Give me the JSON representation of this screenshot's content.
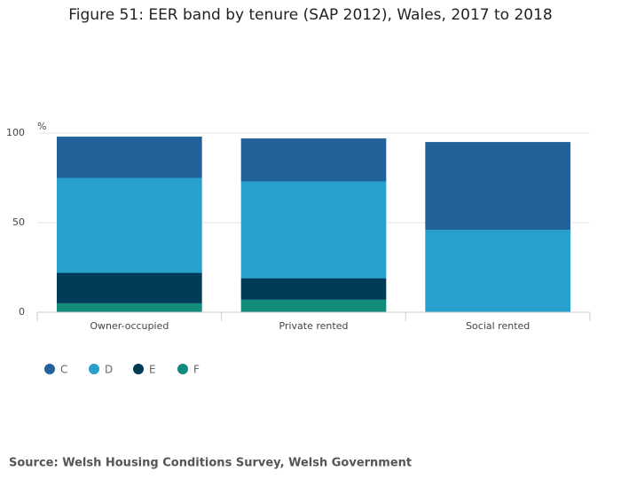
{
  "chart_data": {
    "type": "stacked-bar",
    "title": "Figure 51: EER band by tenure (SAP 2012), Wales, 2017 to 2018",
    "y_label": "%",
    "categories": [
      "Owner-occupied",
      "Private rented",
      "Social rented"
    ],
    "series": [
      {
        "name": "C",
        "color": "#22619a",
        "values": [
          23,
          24,
          49
        ]
      },
      {
        "name": "D",
        "color": "#27a0cc",
        "values": [
          53,
          54,
          46
        ]
      },
      {
        "name": "E",
        "color": "#003c57",
        "values": [
          17,
          12,
          0
        ]
      },
      {
        "name": "F",
        "color": "#118c7b",
        "values": [
          5,
          7,
          0
        ]
      }
    ],
    "ylim": [
      0,
      100
    ],
    "yticks": [
      0,
      50,
      100
    ],
    "grid": true,
    "source": "Source: Welsh Housing Conditions Survey, Welsh Government"
  }
}
